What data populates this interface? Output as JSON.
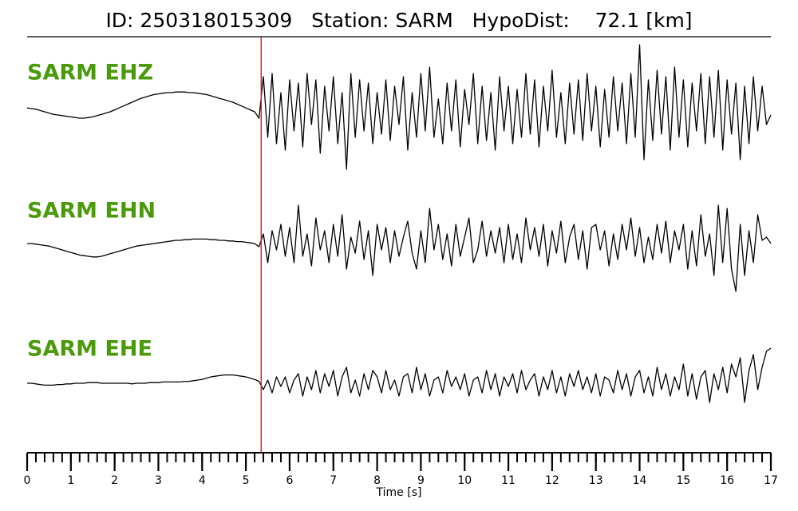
{
  "chart_data": {
    "type": "seismogram",
    "title": "ID: 250318015309   Station: SARM   HypoDist:    72.1 [km]",
    "x_label": "Time [s]",
    "xlim": [
      0,
      17
    ],
    "xticks": [
      0,
      1,
      2,
      3,
      4,
      5,
      6,
      7,
      8,
      9,
      10,
      11,
      12,
      13,
      14,
      15,
      16,
      17
    ],
    "xminor_step": 0.2,
    "ylim": [
      -1,
      1
    ],
    "pick": 5.35,
    "pick_color": "#e41a1c",
    "label_color": "#4a9a0a",
    "x": [
      0,
      0.1,
      0.2,
      0.3,
      0.4,
      0.5,
      0.6,
      0.7,
      0.8,
      0.9,
      1,
      1.1,
      1.2,
      1.3,
      1.4,
      1.5,
      1.6,
      1.7,
      1.8,
      1.9,
      2,
      2.1,
      2.2,
      2.3,
      2.4,
      2.5,
      2.6,
      2.7,
      2.8,
      2.9,
      3,
      3.1,
      3.2,
      3.3,
      3.4,
      3.5,
      3.6,
      3.7,
      3.8,
      3.9,
      4,
      4.1,
      4.2,
      4.3,
      4.4,
      4.5,
      4.6,
      4.7,
      4.8,
      4.9,
      5,
      5.1,
      5.2,
      5.3,
      5.4,
      5.5,
      5.6,
      5.7,
      5.8,
      5.9,
      6,
      6.1,
      6.2,
      6.3,
      6.4,
      6.5,
      6.6,
      6.7,
      6.8,
      6.9,
      7,
      7.1,
      7.2,
      7.3,
      7.4,
      7.5,
      7.6,
      7.7,
      7.8,
      7.9,
      8,
      8.1,
      8.2,
      8.3,
      8.4,
      8.5,
      8.6,
      8.7,
      8.8,
      8.9,
      9,
      9.1,
      9.2,
      9.3,
      9.4,
      9.5,
      9.6,
      9.7,
      9.8,
      9.9,
      10,
      10.1,
      10.2,
      10.3,
      10.4,
      10.5,
      10.6,
      10.7,
      10.8,
      10.9,
      11,
      11.1,
      11.2,
      11.3,
      11.4,
      11.5,
      11.6,
      11.7,
      11.8,
      11.9,
      12,
      12.1,
      12.2,
      12.3,
      12.4,
      12.5,
      12.6,
      12.7,
      12.8,
      12.9,
      13,
      13.1,
      13.2,
      13.3,
      13.4,
      13.5,
      13.6,
      13.7,
      13.8,
      13.9,
      14,
      14.1,
      14.2,
      14.3,
      14.4,
      14.5,
      14.6,
      14.7,
      14.8,
      14.9,
      15,
      15.1,
      15.2,
      15.3,
      15.4,
      15.5,
      15.6,
      15.7,
      15.8,
      15.9,
      16,
      16.1,
      16.2,
      16.3,
      16.4,
      16.5,
      16.6,
      16.7,
      16.8,
      16.9,
      17
    ],
    "series": [
      {
        "name": "SARM EHZ",
        "color": "#000000",
        "values": [
          0.06,
          0.05,
          0.04,
          0.02,
          0.0,
          -0.02,
          -0.04,
          -0.05,
          -0.06,
          -0.07,
          -0.08,
          -0.09,
          -0.1,
          -0.1,
          -0.09,
          -0.08,
          -0.06,
          -0.04,
          -0.02,
          0.0,
          0.03,
          0.06,
          0.09,
          0.12,
          0.15,
          0.18,
          0.21,
          0.23,
          0.25,
          0.27,
          0.28,
          0.29,
          0.3,
          0.3,
          0.31,
          0.31,
          0.31,
          0.3,
          0.3,
          0.29,
          0.28,
          0.27,
          0.25,
          0.23,
          0.21,
          0.19,
          0.17,
          0.15,
          0.12,
          0.09,
          0.06,
          0.03,
          0.0,
          -0.1,
          0.55,
          -0.4,
          0.6,
          -0.5,
          0.3,
          -0.6,
          0.5,
          -0.3,
          0.45,
          -0.55,
          0.6,
          -0.2,
          0.5,
          -0.65,
          0.4,
          -0.3,
          0.55,
          -0.5,
          0.3,
          -0.9,
          0.6,
          -0.4,
          0.5,
          -0.3,
          0.45,
          -0.5,
          0.3,
          -0.35,
          0.5,
          -0.45,
          0.4,
          -0.2,
          0.55,
          -0.6,
          0.3,
          -0.4,
          0.6,
          -0.3,
          0.7,
          -0.4,
          0.2,
          -0.5,
          0.45,
          -0.3,
          0.5,
          -0.55,
          0.35,
          -0.2,
          0.6,
          -0.5,
          0.4,
          -0.45,
          0.3,
          -0.6,
          0.55,
          -0.3,
          0.4,
          -0.5,
          0.35,
          -0.4,
          0.6,
          -0.35,
          0.5,
          -0.55,
          0.4,
          -0.3,
          0.65,
          -0.4,
          0.3,
          -0.5,
          0.45,
          -0.35,
          0.5,
          -0.45,
          0.6,
          -0.3,
          0.4,
          -0.55,
          0.35,
          -0.4,
          0.55,
          -0.3,
          0.45,
          -0.5,
          0.6,
          -0.4,
          1.05,
          -0.75,
          0.5,
          -0.45,
          0.65,
          -0.35,
          0.55,
          -0.6,
          0.7,
          -0.4,
          0.5,
          -0.55,
          0.45,
          -0.3,
          0.6,
          -0.5,
          0.55,
          -0.4,
          0.65,
          -0.6,
          0.5,
          -0.35,
          0.45,
          -0.75,
          0.4,
          -0.5,
          0.55,
          -0.3,
          0.4,
          -0.2,
          -0.05
        ]
      },
      {
        "name": "SARM EHN",
        "color": "#000000",
        "values": [
          0.0,
          0.0,
          -0.01,
          -0.02,
          -0.03,
          -0.04,
          -0.06,
          -0.08,
          -0.1,
          -0.12,
          -0.14,
          -0.16,
          -0.18,
          -0.19,
          -0.2,
          -0.21,
          -0.21,
          -0.2,
          -0.18,
          -0.16,
          -0.14,
          -0.12,
          -0.1,
          -0.08,
          -0.06,
          -0.04,
          -0.03,
          -0.02,
          -0.01,
          0.0,
          0.01,
          0.02,
          0.03,
          0.04,
          0.05,
          0.05,
          0.06,
          0.06,
          0.07,
          0.07,
          0.07,
          0.07,
          0.06,
          0.06,
          0.05,
          0.05,
          0.04,
          0.04,
          0.03,
          0.03,
          0.02,
          0.01,
          0.0,
          -0.05,
          0.15,
          -0.3,
          0.2,
          -0.1,
          0.3,
          -0.2,
          0.25,
          -0.3,
          0.6,
          -0.2,
          0.15,
          -0.35,
          0.4,
          -0.1,
          0.2,
          -0.3,
          0.3,
          -0.2,
          0.45,
          -0.4,
          0.1,
          -0.15,
          0.35,
          -0.25,
          0.2,
          -0.5,
          0.3,
          -0.1,
          0.25,
          -0.3,
          0.2,
          -0.2,
          0.1,
          0.35,
          -0.15,
          -0.4,
          0.2,
          -0.3,
          0.55,
          -0.1,
          0.3,
          -0.25,
          0.15,
          -0.35,
          0.3,
          -0.2,
          0.1,
          0.4,
          -0.3,
          -0.1,
          0.35,
          -0.2,
          0.2,
          -0.15,
          0.25,
          -0.3,
          0.3,
          -0.25,
          0.15,
          -0.3,
          0.4,
          -0.1,
          0.25,
          -0.2,
          0.3,
          -0.35,
          0.2,
          -0.15,
          0.35,
          -0.3,
          0.1,
          0.3,
          -0.25,
          0.2,
          -0.4,
          0.25,
          0.3,
          -0.1,
          0.2,
          -0.35,
          0.15,
          -0.25,
          0.3,
          -0.1,
          0.4,
          -0.2,
          0.25,
          -0.3,
          0.1,
          -0.25,
          0.3,
          -0.15,
          0.35,
          -0.3,
          0.2,
          -0.1,
          0.3,
          -0.4,
          0.2,
          -0.35,
          0.45,
          -0.2,
          0.15,
          -0.5,
          0.6,
          -0.3,
          0.55,
          -0.4,
          -0.75,
          0.3,
          -0.5,
          0.2,
          -0.3,
          0.45,
          0.05,
          0.1,
          0.0
        ]
      },
      {
        "name": "SARM EHE",
        "color": "#000000",
        "values": [
          0.0,
          0.0,
          -0.01,
          -0.02,
          -0.03,
          -0.03,
          -0.03,
          -0.02,
          -0.02,
          -0.01,
          -0.01,
          0.0,
          0.0,
          0.0,
          0.01,
          0.01,
          0.01,
          0.0,
          0.0,
          0.0,
          0.0,
          0.0,
          0.0,
          0.0,
          -0.01,
          0.0,
          0.0,
          0.0,
          0.01,
          0.01,
          0.01,
          0.02,
          0.02,
          0.02,
          0.02,
          0.02,
          0.03,
          0.03,
          0.04,
          0.05,
          0.06,
          0.08,
          0.1,
          0.11,
          0.12,
          0.13,
          0.13,
          0.13,
          0.12,
          0.11,
          0.1,
          0.08,
          0.06,
          0.03,
          -0.1,
          0.05,
          -0.15,
          0.1,
          -0.05,
          0.1,
          -0.15,
          0.05,
          0.15,
          -0.2,
          0.1,
          -0.1,
          0.2,
          -0.15,
          0.15,
          -0.05,
          0.2,
          -0.2,
          0.1,
          0.25,
          -0.15,
          0.05,
          -0.2,
          0.15,
          -0.1,
          0.2,
          0.1,
          -0.15,
          0.2,
          -0.1,
          0.05,
          -0.2,
          0.1,
          0.15,
          -0.15,
          0.25,
          -0.1,
          0.15,
          -0.2,
          0.05,
          0.1,
          -0.15,
          0.2,
          -0.05,
          0.1,
          -0.1,
          0.15,
          -0.2,
          0.05,
          0.1,
          -0.15,
          0.2,
          -0.1,
          0.15,
          -0.2,
          0.1,
          -0.05,
          0.15,
          -0.15,
          0.2,
          -0.1,
          0.05,
          0.15,
          -0.2,
          0.1,
          -0.1,
          0.2,
          -0.15,
          0.1,
          -0.2,
          0.15,
          -0.05,
          0.2,
          -0.1,
          0.1,
          -0.15,
          0.15,
          -0.2,
          0.1,
          0.05,
          -0.15,
          0.2,
          -0.1,
          0.15,
          -0.2,
          0.1,
          0.2,
          -0.15,
          0.1,
          -0.2,
          0.25,
          -0.1,
          0.15,
          -0.2,
          0.1,
          -0.1,
          0.3,
          -0.2,
          0.15,
          -0.25,
          0.1,
          0.2,
          -0.3,
          0.15,
          -0.1,
          0.25,
          -0.15,
          0.3,
          0.1,
          0.4,
          -0.3,
          0.2,
          0.45,
          -0.1,
          0.25,
          0.5,
          0.55
        ]
      }
    ]
  }
}
